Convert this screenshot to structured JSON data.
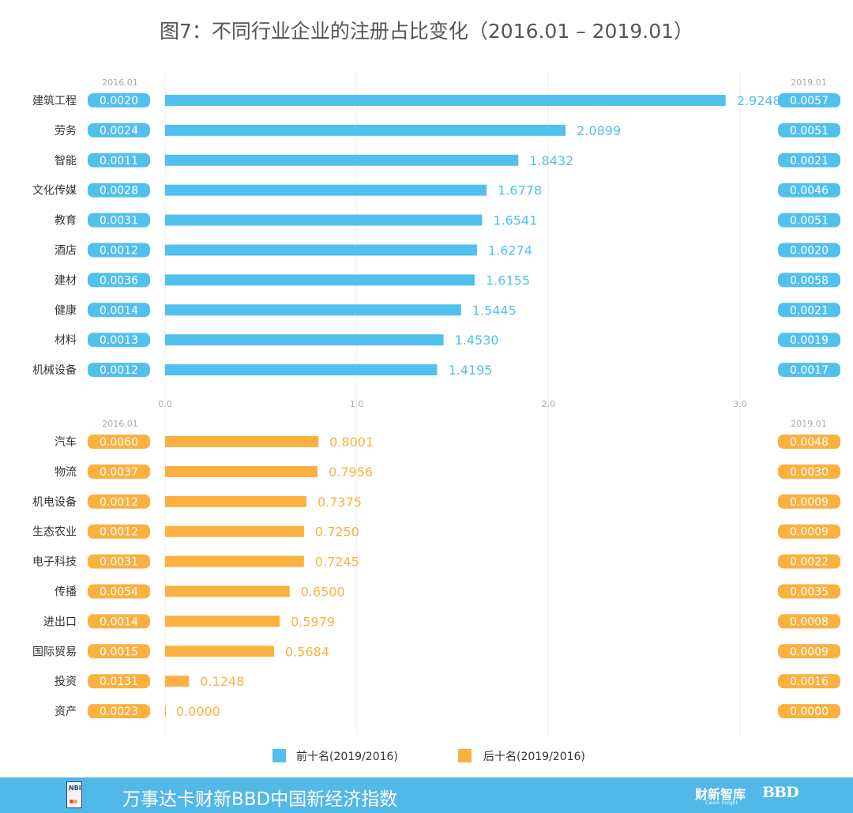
{
  "title": "图7：不同行业企业的注册占比变化（2016.01 – 2019.01）",
  "colors": {
    "top": "#52c0ef",
    "bottom": "#fbb040",
    "grid": "#e8e8e8",
    "axis_text": "#aaaaaa",
    "label_text": "#333333",
    "footer_bg": "#52b8e8"
  },
  "chart_data": [
    {
      "type": "bar",
      "orientation": "horizontal",
      "series_name": "前十名(2019/2016)",
      "color": "#52c0ef",
      "left_header": "2016.01",
      "right_header": "2019.01",
      "categories": [
        "建筑工程",
        "劳务",
        "智能",
        "文化传媒",
        "教育",
        "酒店",
        "建材",
        "健康",
        "材料",
        "机械设备"
      ],
      "values": [
        2.9248,
        2.0899,
        1.8432,
        1.6778,
        1.6541,
        1.6274,
        1.6155,
        1.5445,
        1.453,
        1.4195
      ],
      "value_labels": [
        "2.9248",
        "2.0899",
        "1.8432",
        "1.6778",
        "1.6541",
        "1.6274",
        "1.6155",
        "1.5445",
        "1.4530",
        "1.4195"
      ],
      "share_2016": [
        "0.0020",
        "0.0024",
        "0.0011",
        "0.0028",
        "0.0031",
        "0.0012",
        "0.0036",
        "0.0014",
        "0.0013",
        "0.0012"
      ],
      "share_2019": [
        "0.0057",
        "0.0051",
        "0.0021",
        "0.0046",
        "0.0051",
        "0.0020",
        "0.0058",
        "0.0021",
        "0.0019",
        "0.0017"
      ],
      "xlim": [
        0,
        3
      ],
      "xticks": [
        "0.0",
        "1.0",
        "2.0",
        "3.0"
      ]
    },
    {
      "type": "bar",
      "orientation": "horizontal",
      "series_name": "后十名(2019/2016)",
      "color": "#fbb040",
      "left_header": "2016.01",
      "right_header": "2019.01",
      "categories": [
        "汽车",
        "物流",
        "机电设备",
        "生态农业",
        "电子科技",
        "传播",
        "进出口",
        "国际贸易",
        "投资",
        "资产"
      ],
      "values": [
        0.8001,
        0.7956,
        0.7375,
        0.725,
        0.7245,
        0.65,
        0.5979,
        0.5684,
        0.1248,
        0.0
      ],
      "value_labels": [
        "0.8001",
        "0.7956",
        "0.7375",
        "0.7250",
        "0.7245",
        "0.6500",
        "0.5979",
        "0.5684",
        "0.1248",
        "0.0000"
      ],
      "share_2016": [
        "0.0060",
        "0.0037",
        "0.0012",
        "0.0012",
        "0.0031",
        "0.0054",
        "0.0014",
        "0.0015",
        "0.0131",
        "0.0023"
      ],
      "share_2019": [
        "0.0048",
        "0.0030",
        "0.0009",
        "0.0009",
        "0.0022",
        "0.0035",
        "0.0008",
        "0.0009",
        "0.0016",
        "0.0000"
      ],
      "xlim": [
        0,
        3
      ]
    }
  ],
  "legend": {
    "top_label": "前十名(2019/2016)",
    "bottom_label": "后十名(2019/2016)"
  },
  "footer": {
    "logo_text": "NBI",
    "title": "万事达卡财新BBD中国新经济指数",
    "brand1": "财新智库",
    "brand1_sub": "Caixin Insight",
    "brand2": "BBD"
  }
}
